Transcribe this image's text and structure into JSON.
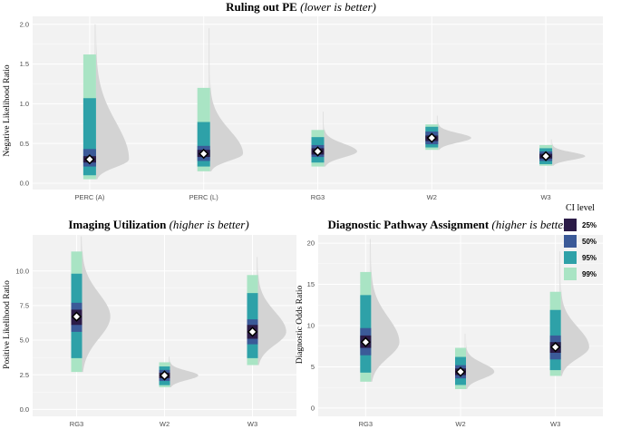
{
  "colors": {
    "ci_25": "#2b1b47",
    "ci_50": "#3b5a98",
    "ci_95": "#2ea1a8",
    "ci_99": "#a9e4c4",
    "point_fill": "#ffffff",
    "distribution": "#d3d3d3"
  },
  "legend": {
    "title": "CI level",
    "items": [
      {
        "label": "25%",
        "color": "#2b1b47"
      },
      {
        "label": "50%",
        "color": "#3b5a98"
      },
      {
        "label": "95%",
        "color": "#2ea1a8"
      },
      {
        "label": "99%",
        "color": "#a9e4c4"
      }
    ]
  },
  "chart_data": [
    {
      "type": "interval",
      "title": "Ruling out PE",
      "subtitle": "(lower is better)",
      "xlabel": "",
      "ylabel": "Negative Likelihood Ratio",
      "ylim": [
        -0.08,
        2.1
      ],
      "yticks": [
        0.0,
        0.5,
        1.0,
        1.5,
        2.0
      ],
      "ytick_labels": [
        "0.0",
        "0.5",
        "1.0",
        "1.5",
        "2.0"
      ],
      "categories": [
        "PERC (A)",
        "PERC (L)",
        "RG3",
        "W2",
        "W3"
      ],
      "point": [
        0.3,
        0.37,
        0.4,
        0.57,
        0.34
      ],
      "ci_25": [
        [
          0.26,
          0.34
        ],
        [
          0.33,
          0.42
        ],
        [
          0.36,
          0.44
        ],
        [
          0.53,
          0.6
        ],
        [
          0.31,
          0.37
        ]
      ],
      "ci_50": [
        [
          0.21,
          0.43
        ],
        [
          0.28,
          0.47
        ],
        [
          0.33,
          0.48
        ],
        [
          0.49,
          0.65
        ],
        [
          0.28,
          0.4
        ]
      ],
      "ci_95": [
        [
          0.1,
          1.07
        ],
        [
          0.21,
          0.77
        ],
        [
          0.26,
          0.58
        ],
        [
          0.45,
          0.71
        ],
        [
          0.24,
          0.44
        ]
      ],
      "ci_99": [
        [
          0.05,
          1.62
        ],
        [
          0.15,
          1.2
        ],
        [
          0.21,
          0.67
        ],
        [
          0.42,
          0.74
        ],
        [
          0.22,
          0.48
        ]
      ],
      "distribution_max": [
        2.0,
        1.95,
        0.9,
        0.85,
        0.55
      ]
    },
    {
      "type": "interval",
      "title": "Imaging Utilization",
      "subtitle": "(higher is better)",
      "xlabel": "",
      "ylabel": "Positive Likelihood Ratio",
      "ylim": [
        -0.5,
        12.6
      ],
      "yticks": [
        0.0,
        2.5,
        5.0,
        7.5,
        10.0
      ],
      "ytick_labels": [
        "0.0",
        "2.5",
        "5.0",
        "7.5",
        "10.0"
      ],
      "categories": [
        "RG3",
        "W2",
        "W3"
      ],
      "point": [
        6.7,
        2.45,
        5.6
      ],
      "ci_25": [
        [
          6.1,
          7.2
        ],
        [
          2.25,
          2.65
        ],
        [
          5.1,
          6.1
        ]
      ],
      "ci_50": [
        [
          5.6,
          7.7
        ],
        [
          2.05,
          2.85
        ],
        [
          4.7,
          6.5
        ]
      ],
      "ci_95": [
        [
          3.7,
          9.8
        ],
        [
          1.75,
          3.1
        ],
        [
          3.7,
          8.4
        ]
      ],
      "ci_99": [
        [
          2.7,
          11.4
        ],
        [
          1.6,
          3.4
        ],
        [
          3.2,
          9.7
        ]
      ],
      "distribution_max": [
        12.5,
        3.8,
        11.0
      ]
    },
    {
      "type": "interval",
      "title": "Diagnostic Pathway Assignment",
      "subtitle": "(higher is better)",
      "xlabel": "",
      "ylabel": "Diagnostic Odds Ratio",
      "ylim": [
        -1.0,
        21.0
      ],
      "yticks": [
        0,
        5,
        10,
        15,
        20
      ],
      "ytick_labels": [
        "0",
        "5",
        "10",
        "15",
        "20"
      ],
      "categories": [
        "RG3",
        "W2",
        "W3"
      ],
      "point": [
        8.0,
        4.4,
        7.4
      ],
      "ci_25": [
        [
          7.3,
          8.8
        ],
        [
          4.0,
          4.8
        ],
        [
          6.7,
          8.0
        ]
      ],
      "ci_50": [
        [
          6.4,
          9.7
        ],
        [
          3.6,
          5.2
        ],
        [
          5.9,
          8.8
        ]
      ],
      "ci_95": [
        [
          4.3,
          13.7
        ],
        [
          2.8,
          6.2
        ],
        [
          4.6,
          11.9
        ]
      ],
      "ci_99": [
        [
          3.2,
          16.5
        ],
        [
          2.3,
          7.3
        ],
        [
          3.9,
          14.1
        ]
      ],
      "distribution_max": [
        20.5,
        9.0,
        19.0
      ]
    }
  ]
}
